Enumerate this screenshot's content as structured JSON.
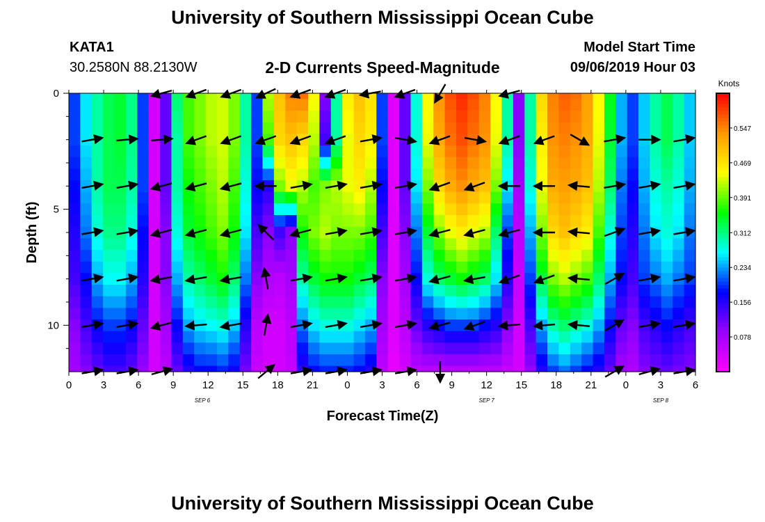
{
  "header": {
    "title": "University of Southern Mississippi Ocean Cube",
    "station_id": "KATA1",
    "coords": "30.2580N 88.2130W",
    "model_start_label": "Model Start Time",
    "model_start_value": "09/06/2019 Hour 03"
  },
  "footer": {
    "title": "University of Southern Mississippi Ocean Cube"
  },
  "chart_data": {
    "type": "heatmap",
    "title": "2-D Currents Speed-Magnitude",
    "xlabel": "Forecast Time(Z)",
    "ylabel": "Depth (ft)",
    "x_range_hours": [
      0,
      54
    ],
    "x_ticks": [
      "0",
      "3",
      "6",
      "9",
      "12",
      "15",
      "18",
      "21",
      "0",
      "3",
      "6",
      "9",
      "12",
      "15",
      "18",
      "21",
      "0",
      "3",
      "6"
    ],
    "date_labels": [
      {
        "label": "SEP 6",
        "hour": 11.5
      },
      {
        "label": "SEP 7",
        "hour": 36
      },
      {
        "label": "SEP 8",
        "hour": 51
      }
    ],
    "ylim": [
      0,
      12
    ],
    "y_ticks": [
      "0",
      "5",
      "10"
    ],
    "colorbar": {
      "units": "Knots",
      "min": 0.0,
      "max": 0.625,
      "tick_values": [
        0.078,
        0.156,
        0.234,
        0.312,
        0.391,
        0.469,
        0.547
      ],
      "tick_labels": [
        "0.078",
        "0.156",
        "0.234",
        "0.312",
        "0.391",
        "0.469",
        "0.547"
      ],
      "colors": [
        "#ff00ff",
        "#9900ff",
        "#0000ff",
        "#00ffff",
        "#00ff00",
        "#ffff00",
        "#ff9900",
        "#ff0000"
      ]
    },
    "depths_ft": [
      0,
      2,
      4,
      6,
      8,
      10,
      12
    ],
    "speeds_knots": {
      "0.0": [
        0.2,
        0.26,
        0.3,
        0.33,
        0.34,
        0.31,
        0.2,
        0.04,
        0.12,
        0.32,
        0.38,
        0.4,
        0.42,
        0.43,
        0.4,
        0.3,
        0.2,
        0.42,
        0.5,
        0.55,
        0.56,
        0.45,
        0.1,
        0.3,
        0.46,
        0.5,
        0.47,
        0.2,
        0.03,
        0.12,
        0.28,
        0.45,
        0.54,
        0.58,
        0.6,
        0.58,
        0.55,
        0.45,
        0.3,
        0.1,
        0.3,
        0.48,
        0.55,
        0.57,
        0.56,
        0.53,
        0.45,
        0.35,
        0.24,
        0.2,
        0.25,
        0.3,
        0.33,
        0.3,
        0.25
      ],
      "2.0": [
        0.2,
        0.26,
        0.3,
        0.33,
        0.34,
        0.31,
        0.2,
        0.04,
        0.12,
        0.3,
        0.38,
        0.4,
        0.42,
        0.43,
        0.4,
        0.3,
        0.2,
        0.38,
        0.48,
        0.5,
        0.48,
        0.42,
        0.14,
        0.3,
        0.44,
        0.48,
        0.46,
        0.2,
        0.03,
        0.12,
        0.28,
        0.44,
        0.52,
        0.56,
        0.58,
        0.56,
        0.54,
        0.44,
        0.3,
        0.1,
        0.3,
        0.46,
        0.54,
        0.55,
        0.54,
        0.52,
        0.44,
        0.34,
        0.24,
        0.2,
        0.25,
        0.3,
        0.33,
        0.3,
        0.25
      ],
      "4.0": [
        0.18,
        0.24,
        0.3,
        0.33,
        0.33,
        0.3,
        0.2,
        0.04,
        0.12,
        0.3,
        0.36,
        0.38,
        0.4,
        0.42,
        0.38,
        0.28,
        0.18,
        0.16,
        0.4,
        0.44,
        0.42,
        0.38,
        0.4,
        0.42,
        0.44,
        0.46,
        0.42,
        0.18,
        0.03,
        0.12,
        0.26,
        0.4,
        0.48,
        0.52,
        0.54,
        0.52,
        0.5,
        0.4,
        0.26,
        0.08,
        0.28,
        0.44,
        0.52,
        0.53,
        0.52,
        0.5,
        0.42,
        0.32,
        0.22,
        0.18,
        0.24,
        0.28,
        0.3,
        0.28,
        0.24
      ],
      "6.0": [
        0.16,
        0.22,
        0.28,
        0.31,
        0.31,
        0.28,
        0.18,
        0.04,
        0.1,
        0.28,
        0.34,
        0.36,
        0.38,
        0.4,
        0.36,
        0.26,
        0.14,
        0.1,
        0.14,
        0.1,
        0.36,
        0.4,
        0.42,
        0.4,
        0.4,
        0.4,
        0.38,
        0.14,
        0.03,
        0.1,
        0.22,
        0.34,
        0.4,
        0.44,
        0.46,
        0.44,
        0.42,
        0.32,
        0.2,
        0.06,
        0.24,
        0.4,
        0.48,
        0.5,
        0.48,
        0.46,
        0.38,
        0.28,
        0.2,
        0.16,
        0.22,
        0.26,
        0.28,
        0.26,
        0.22
      ],
      "8.0": [
        0.14,
        0.18,
        0.24,
        0.27,
        0.27,
        0.24,
        0.16,
        0.04,
        0.1,
        0.24,
        0.3,
        0.32,
        0.34,
        0.36,
        0.32,
        0.22,
        0.1,
        0.07,
        0.06,
        0.08,
        0.3,
        0.34,
        0.36,
        0.36,
        0.36,
        0.34,
        0.32,
        0.1,
        0.03,
        0.08,
        0.18,
        0.28,
        0.32,
        0.34,
        0.36,
        0.34,
        0.32,
        0.26,
        0.16,
        0.05,
        0.2,
        0.34,
        0.4,
        0.42,
        0.4,
        0.38,
        0.32,
        0.24,
        0.18,
        0.14,
        0.2,
        0.22,
        0.24,
        0.22,
        0.2
      ],
      "10.0": [
        0.1,
        0.14,
        0.18,
        0.2,
        0.2,
        0.18,
        0.12,
        0.04,
        0.08,
        0.18,
        0.24,
        0.26,
        0.27,
        0.28,
        0.25,
        0.16,
        0.06,
        0.04,
        0.04,
        0.06,
        0.22,
        0.26,
        0.28,
        0.28,
        0.28,
        0.26,
        0.24,
        0.08,
        0.03,
        0.06,
        0.12,
        0.16,
        0.18,
        0.2,
        0.2,
        0.2,
        0.18,
        0.16,
        0.1,
        0.04,
        0.14,
        0.24,
        0.3,
        0.32,
        0.3,
        0.28,
        0.24,
        0.18,
        0.12,
        0.1,
        0.14,
        0.16,
        0.18,
        0.16,
        0.14
      ],
      "12.0": [
        0.08,
        0.1,
        0.12,
        0.14,
        0.14,
        0.12,
        0.09,
        0.04,
        0.06,
        0.12,
        0.16,
        0.18,
        0.18,
        0.19,
        0.17,
        0.11,
        0.05,
        0.04,
        0.04,
        0.05,
        0.15,
        0.18,
        0.19,
        0.19,
        0.19,
        0.18,
        0.16,
        0.06,
        0.02,
        0.04,
        0.06,
        0.06,
        0.06,
        0.06,
        0.06,
        0.06,
        0.06,
        0.06,
        0.05,
        0.04,
        0.09,
        0.16,
        0.2,
        0.22,
        0.2,
        0.18,
        0.16,
        0.12,
        0.08,
        0.07,
        0.1,
        0.11,
        0.12,
        0.11,
        0.1
      ]
    },
    "vectors": {
      "times": [
        2,
        5,
        8,
        11,
        14,
        17,
        20,
        23,
        26,
        29,
        32,
        35,
        38,
        41,
        44,
        47,
        50,
        53
      ],
      "depths": [
        0,
        2,
        4,
        6,
        8,
        10,
        12
      ],
      "angles_deg": [
        [
          null,
          null,
          195,
          200,
          200,
          205,
          200,
          200,
          190,
          200,
          240,
          null,
          195,
          null,
          null,
          null,
          null,
          null
        ],
        [
          10,
          5,
          5,
          200,
          200,
          200,
          200,
          200,
          10,
          350,
          200,
          350,
          200,
          200,
          330,
          10,
          0,
          10
        ],
        [
          10,
          10,
          195,
          195,
          195,
          180,
          10,
          10,
          10,
          10,
          200,
          200,
          180,
          180,
          175,
          10,
          10,
          10
        ],
        [
          10,
          10,
          195,
          195,
          195,
          135,
          195,
          10,
          10,
          10,
          195,
          195,
          195,
          180,
          175,
          20,
          10,
          10
        ],
        [
          10,
          10,
          190,
          190,
          190,
          100,
          10,
          10,
          10,
          10,
          195,
          190,
          200,
          200,
          175,
          30,
          10,
          10
        ],
        [
          10,
          10,
          195,
          185,
          190,
          80,
          10,
          10,
          10,
          10,
          195,
          200,
          185,
          185,
          175,
          30,
          10,
          10
        ],
        [
          10,
          10,
          15,
          null,
          null,
          40,
          10,
          10,
          10,
          10,
          270,
          null,
          null,
          null,
          null,
          30,
          15,
          10
        ]
      ]
    }
  }
}
